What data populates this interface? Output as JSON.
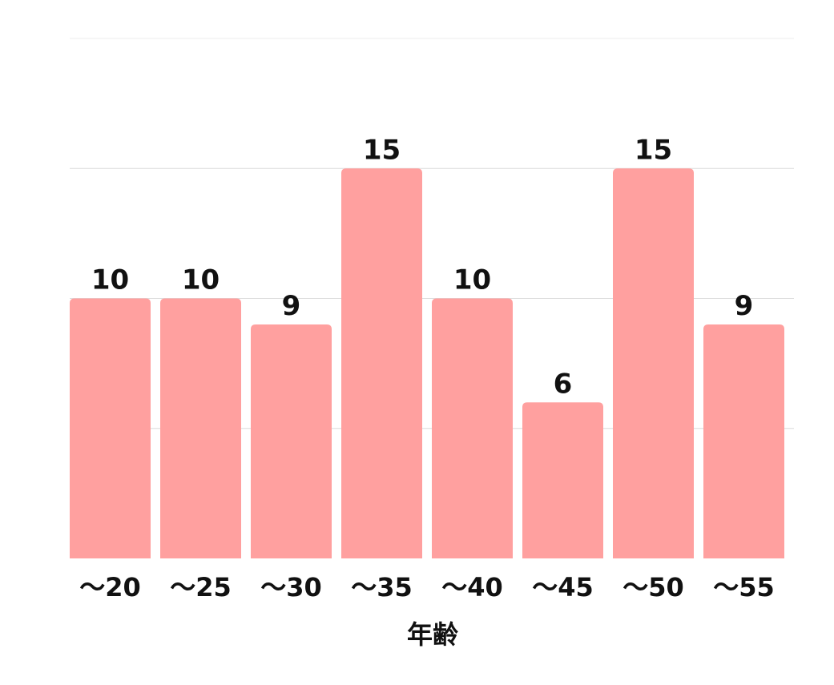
{
  "chart_data": {
    "type": "bar",
    "categories": [
      "～20",
      "～25",
      "～30",
      "～35",
      "～40",
      "～45",
      "～50",
      "～55"
    ],
    "values": [
      10,
      10,
      9,
      15,
      10,
      6,
      15,
      9
    ],
    "title": "",
    "xlabel": "年齢",
    "ylabel": "",
    "ylim": [
      0,
      20
    ],
    "yticks": [
      0,
      5,
      10,
      15,
      20
    ],
    "grid": true,
    "show_y_tick_labels": false,
    "data_labels": true,
    "bar_color": "#ffa09f",
    "legend": "none"
  }
}
